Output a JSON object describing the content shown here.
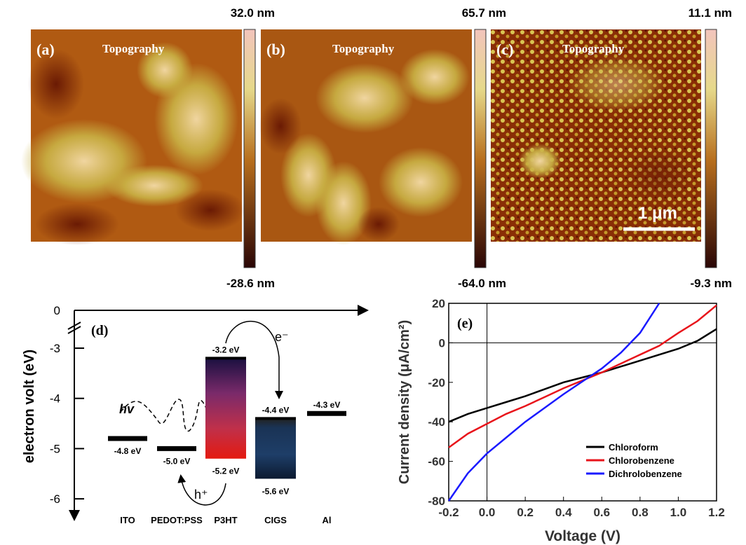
{
  "afm_panels": [
    {
      "label": "(a)",
      "title": "Topography",
      "scale_max": "32.0 nm",
      "scale_min": "-28.6 nm"
    },
    {
      "label": "(b)",
      "title": "Topography",
      "scale_max": "65.7 nm",
      "scale_min": "-64.0 nm"
    },
    {
      "label": "(c)",
      "title": "Topography",
      "scale_max": "11.1 nm",
      "scale_min": "-9.3 nm"
    }
  ],
  "scale_bar": "1 μm",
  "energy_diagram": {
    "label": "(d)",
    "y_label": "electron volt (eV)",
    "yticks": [
      0,
      -3,
      -4,
      -5,
      -6
    ],
    "levels": [
      {
        "name": "ITO",
        "values": [
          -4.8
        ],
        "value_labels": [
          "-4.8 eV"
        ]
      },
      {
        "name": "PEDOT:PSS",
        "values": [
          -5.0
        ],
        "value_labels": [
          "-5.0 eV"
        ]
      },
      {
        "name": "P3HT",
        "values": [
          -3.2,
          -5.2
        ],
        "value_labels": [
          "-3.2 eV",
          "-5.2 eV"
        ]
      },
      {
        "name": "CIGS",
        "values": [
          -4.4,
          -5.6
        ],
        "value_labels": [
          "-4.4 eV",
          "-5.6 eV"
        ]
      },
      {
        "name": "Al",
        "values": [
          -4.3
        ],
        "value_labels": [
          "-4.3 eV"
        ]
      }
    ],
    "annotations": {
      "photon": "hv",
      "electron": "e⁻",
      "hole": "h⁺"
    }
  },
  "chart_data": {
    "type": "line",
    "label": "(e)",
    "x_label": "Voltage (V)",
    "y_label": "Current density (μA/cm²)",
    "x": [
      -0.2,
      -0.1,
      0,
      0.1,
      0.2,
      0.3,
      0.4,
      0.5,
      0.6,
      0.7,
      0.8,
      0.9,
      1.0,
      1.1,
      1.2
    ],
    "series": [
      {
        "name": "Chloroform",
        "color": "#000000",
        "values": [
          -40,
          -36,
          -33,
          -30,
          -27,
          -23.5,
          -20,
          -17.5,
          -15,
          -12,
          -9,
          -6,
          -3,
          1,
          7
        ]
      },
      {
        "name": "Chlorobenzene",
        "color": "#e8141b",
        "values": [
          -53,
          -46,
          -41,
          -36,
          -32,
          -27.5,
          -23,
          -19,
          -15,
          -10.5,
          -6,
          -1.5,
          5,
          11,
          19
        ]
      },
      {
        "name": "Dichrolobenzene",
        "color": "#1a1aff",
        "values": [
          -80,
          -66,
          -56,
          -48,
          -40,
          -33,
          -26,
          -19.5,
          -13,
          -5,
          5,
          20,
          null,
          null,
          null
        ]
      }
    ],
    "xlim": [
      -0.2,
      1.2
    ],
    "ylim": [
      -80,
      20
    ],
    "xticks": [
      -0.2,
      {
        "value": 0,
        "label": "0.0"
      },
      0.2,
      0.4,
      0.6,
      0.8,
      {
        "value": 1,
        "label": "1.0"
      },
      1.2
    ],
    "yticks": [
      -80,
      -60,
      -40,
      -20,
      0,
      20
    ],
    "legend": "lower right"
  }
}
